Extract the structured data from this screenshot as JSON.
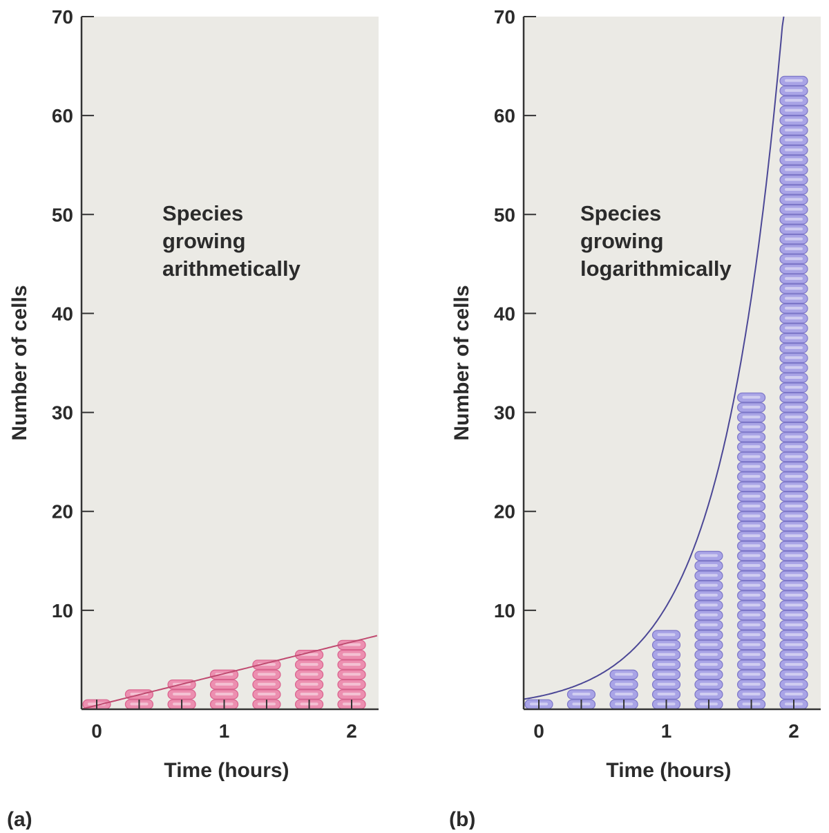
{
  "chart_data": [
    {
      "type": "bar",
      "panel_label": "(a)",
      "annotation": [
        "Species",
        "growing",
        "arithmetically"
      ],
      "xlabel": "Time (hours)",
      "ylabel": "Number of cells",
      "x": [
        0,
        0.333,
        0.667,
        1,
        1.333,
        1.667,
        2
      ],
      "values": [
        1,
        2,
        3,
        4,
        5,
        6,
        7
      ],
      "x_ticks": [
        0,
        1,
        2
      ],
      "y_ticks": [
        10,
        20,
        30,
        40,
        50,
        60,
        70
      ],
      "ylim": [
        0,
        70
      ],
      "xlim": [
        -0.12,
        2.2
      ],
      "trend": {
        "type": "linear",
        "slope": 3.2,
        "intercept": 0.4
      },
      "grid": false,
      "colors": {
        "bar": "#ec8fb0",
        "bar_edge": "#d9618c",
        "line": "#c04a70",
        "background": "#ebeae5"
      }
    },
    {
      "type": "bar",
      "panel_label": "(b)",
      "annotation": [
        "Species",
        "growing",
        "logarithmically"
      ],
      "xlabel": "Time (hours)",
      "ylabel": "Number of cells",
      "x": [
        0,
        0.333,
        0.667,
        1,
        1.333,
        1.667,
        2
      ],
      "values": [
        1,
        2,
        4,
        8,
        16,
        32,
        64
      ],
      "x_ticks": [
        0,
        1,
        2
      ],
      "y_ticks": [
        10,
        20,
        30,
        40,
        50,
        60,
        70
      ],
      "ylim": [
        0,
        70
      ],
      "xlim": [
        -0.12,
        2.2
      ],
      "trend": {
        "type": "exponential",
        "a": 1.3,
        "base": 8
      },
      "grid": false,
      "colors": {
        "bar": "#a9a4e6",
        "bar_edge": "#7c76c8",
        "line": "#4b4796",
        "background": "#ebeae5"
      }
    }
  ]
}
